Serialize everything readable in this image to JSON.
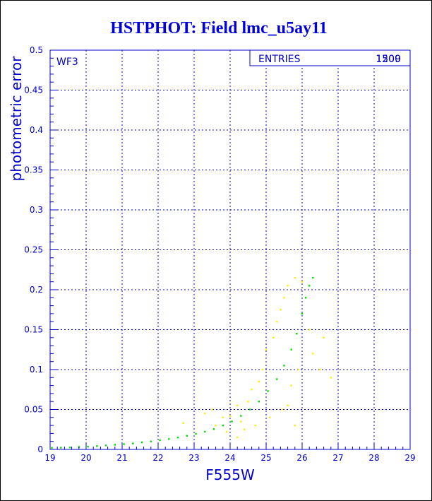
{
  "chart_data": {
    "type": "scatter",
    "title": "HSTPHOT: Field lmc_u5ay11",
    "xlabel": "F555W",
    "ylabel": "photometric error",
    "xlim": [
      19,
      29
    ],
    "ylim": [
      0,
      0.5
    ],
    "x_ticks": [
      "19",
      "20",
      "21",
      "22",
      "23",
      "24",
      "25",
      "26",
      "27",
      "28",
      "29"
    ],
    "y_ticks": [
      "0",
      "0.05",
      "0.1",
      "0.15",
      "0.2",
      "0.25",
      "0.3",
      "0.35",
      "0.4",
      "0.45",
      "0.5"
    ],
    "grid": true,
    "chip_label": "WF3",
    "stats_box": {
      "label": "ENTRIES",
      "values": [
        "1500",
        "1209"
      ]
    },
    "series": [
      {
        "color": "#00dd00",
        "points": [
          [
            19.05,
            0.002
          ],
          [
            19.3,
            0.0022
          ],
          [
            19.55,
            0.0025
          ],
          [
            19.8,
            0.003
          ],
          [
            20.05,
            0.0035
          ],
          [
            20.3,
            0.0042
          ],
          [
            20.55,
            0.005
          ],
          [
            20.8,
            0.0058
          ],
          [
            21.05,
            0.0066
          ],
          [
            21.3,
            0.0075
          ],
          [
            21.55,
            0.0088
          ],
          [
            21.8,
            0.01
          ],
          [
            22.05,
            0.0115
          ],
          [
            22.3,
            0.013
          ],
          [
            22.55,
            0.0148
          ],
          [
            22.8,
            0.017
          ],
          [
            23.05,
            0.0195
          ],
          [
            23.3,
            0.0222
          ],
          [
            23.55,
            0.0255
          ],
          [
            23.8,
            0.03
          ],
          [
            24.05,
            0.035
          ],
          [
            24.3,
            0.042
          ],
          [
            24.55,
            0.05
          ],
          [
            24.8,
            0.06
          ],
          [
            25.05,
            0.073
          ],
          [
            25.3,
            0.088
          ],
          [
            25.5,
            0.105
          ],
          [
            25.7,
            0.125
          ],
          [
            25.85,
            0.145
          ],
          [
            26.0,
            0.17
          ],
          [
            26.1,
            0.19
          ],
          [
            26.2,
            0.205
          ],
          [
            26.3,
            0.215
          ]
        ]
      },
      {
        "color": "#ffee00",
        "points": [
          [
            22.7,
            0.033
          ],
          [
            23.3,
            0.045
          ],
          [
            23.5,
            0.05
          ],
          [
            23.8,
            0.04
          ],
          [
            24.0,
            0.042
          ],
          [
            24.2,
            0.055
          ],
          [
            24.3,
            0.035
          ],
          [
            24.5,
            0.06
          ],
          [
            24.6,
            0.075
          ],
          [
            24.7,
            0.03
          ],
          [
            24.8,
            0.085
          ],
          [
            24.9,
            0.1
          ],
          [
            25.0,
            0.125
          ],
          [
            25.1,
            0.04
          ],
          [
            25.2,
            0.14
          ],
          [
            25.3,
            0.16
          ],
          [
            25.4,
            0.175
          ],
          [
            25.45,
            0.05
          ],
          [
            25.5,
            0.19
          ],
          [
            25.6,
            0.205
          ],
          [
            25.7,
            0.08
          ],
          [
            25.8,
            0.215
          ],
          [
            25.9,
            0.1
          ],
          [
            26.0,
            0.21
          ],
          [
            26.3,
            0.12
          ],
          [
            26.5,
            0.1
          ],
          [
            26.8,
            0.09
          ],
          [
            24.2,
            0.015
          ],
          [
            23.9,
            0.022
          ],
          [
            25.8,
            0.03
          ],
          [
            26.2,
            0.15
          ],
          [
            24.4,
            0.025
          ],
          [
            25.6,
            0.055
          ],
          [
            23.6,
            0.03
          ],
          [
            26.6,
            0.14
          ]
        ]
      }
    ]
  },
  "colors": {
    "title": "#0000dd",
    "axis": "#0000cc",
    "grid": "#0000cc",
    "ink": "#000000"
  }
}
